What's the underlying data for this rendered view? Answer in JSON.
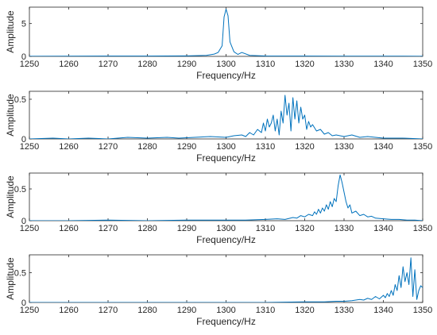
{
  "chart_data": [
    {
      "type": "line",
      "xlabel": "Frequency/Hz",
      "ylabel": "Amplitude",
      "xlim": [
        1250,
        1350
      ],
      "ylim": [
        0,
        7.5
      ],
      "xticks": [
        1250,
        1260,
        1270,
        1280,
        1290,
        1300,
        1310,
        1320,
        1330,
        1340,
        1350
      ],
      "xtick_labels": [
        "1250",
        "1260",
        "1270",
        "1280",
        "1290",
        "1300",
        "1310",
        "1320",
        "1330",
        "1340",
        "1350"
      ],
      "yticks": [
        0,
        5
      ],
      "ytick_labels": [
        "0",
        "5"
      ],
      "grid": false,
      "color": "#0072BD",
      "x": [
        1250,
        1260,
        1280,
        1290,
        1295,
        1297,
        1298,
        1299,
        1299.5,
        1300,
        1300.5,
        1301,
        1302,
        1303,
        1304,
        1306,
        1310,
        1330,
        1350
      ],
      "y": [
        0.02,
        0.03,
        0.05,
        0.08,
        0.15,
        0.35,
        0.6,
        1.6,
        6.0,
        7.2,
        6.2,
        2.2,
        0.7,
        0.3,
        0.6,
        0.15,
        0.06,
        0.03,
        0.02
      ]
    },
    {
      "type": "line",
      "xlabel": "Frequency/Hz",
      "ylabel": "Amplitude",
      "xlim": [
        1250,
        1350
      ],
      "ylim": [
        0,
        0.6
      ],
      "xticks": [
        1250,
        1260,
        1270,
        1280,
        1290,
        1300,
        1310,
        1320,
        1330,
        1340,
        1350
      ],
      "xtick_labels": [
        "1250",
        "1260",
        "1270",
        "1280",
        "1290",
        "1300",
        "1310",
        "1320",
        "1330",
        "1340",
        "1350"
      ],
      "yticks": [
        0,
        0.5
      ],
      "ytick_labels": [
        "0",
        "0.5"
      ],
      "grid": false,
      "color": "#0072BD",
      "x": [
        1250,
        1256,
        1260,
        1265,
        1270,
        1275,
        1280,
        1285,
        1288,
        1292,
        1296,
        1300,
        1302,
        1304,
        1305,
        1306,
        1307,
        1308,
        1309,
        1309.5,
        1310,
        1310.5,
        1311,
        1311.5,
        1312,
        1312.5,
        1313,
        1313.5,
        1314,
        1314.5,
        1315,
        1315.5,
        1316,
        1316.5,
        1317,
        1317.5,
        1318,
        1318.5,
        1319,
        1319.5,
        1320,
        1320.5,
        1321,
        1321.5,
        1322,
        1323,
        1324,
        1325,
        1326,
        1327,
        1328,
        1330,
        1332,
        1334,
        1336,
        1338,
        1340,
        1345,
        1350
      ],
      "y": [
        0.0,
        0.01,
        0.0,
        0.01,
        0.0,
        0.02,
        0.01,
        0.02,
        0.01,
        0.02,
        0.03,
        0.02,
        0.04,
        0.05,
        0.03,
        0.08,
        0.05,
        0.12,
        0.08,
        0.2,
        0.1,
        0.25,
        0.15,
        0.2,
        0.3,
        0.1,
        0.25,
        0.05,
        0.35,
        0.2,
        0.55,
        0.3,
        0.45,
        0.1,
        0.52,
        0.25,
        0.48,
        0.2,
        0.4,
        0.25,
        0.3,
        0.12,
        0.22,
        0.15,
        0.18,
        0.1,
        0.12,
        0.06,
        0.08,
        0.04,
        0.05,
        0.03,
        0.05,
        0.02,
        0.03,
        0.02,
        0.01,
        0.01,
        0.0
      ]
    },
    {
      "type": "line",
      "xlabel": "Frequency/Hz",
      "ylabel": "Amplitude",
      "xlim": [
        1250,
        1350
      ],
      "ylim": [
        0,
        0.75
      ],
      "xticks": [
        1250,
        1260,
        1270,
        1280,
        1290,
        1300,
        1310,
        1320,
        1330,
        1340,
        1350
      ],
      "xtick_labels": [
        "1250",
        "1260",
        "1270",
        "1280",
        "1290",
        "1300",
        "1310",
        "1320",
        "1330",
        "1340",
        "1350"
      ],
      "yticks": [
        0,
        0.5
      ],
      "ytick_labels": [
        "0",
        "0.5"
      ],
      "grid": false,
      "color": "#0072BD",
      "x": [
        1250,
        1260,
        1270,
        1280,
        1290,
        1300,
        1305,
        1310,
        1313,
        1315,
        1317,
        1318,
        1319,
        1320,
        1321,
        1322,
        1322.5,
        1323,
        1323.5,
        1324,
        1324.5,
        1325,
        1325.5,
        1326,
        1326.5,
        1327,
        1327.5,
        1328,
        1328.5,
        1329,
        1329.5,
        1330,
        1330.5,
        1331,
        1331.5,
        1332,
        1333,
        1334,
        1335,
        1336,
        1337,
        1338,
        1340,
        1342,
        1344,
        1346,
        1348,
        1350
      ],
      "y": [
        0.0,
        0.0,
        0.01,
        0.0,
        0.01,
        0.01,
        0.01,
        0.02,
        0.03,
        0.02,
        0.05,
        0.04,
        0.08,
        0.06,
        0.1,
        0.08,
        0.14,
        0.1,
        0.18,
        0.12,
        0.2,
        0.15,
        0.25,
        0.18,
        0.3,
        0.22,
        0.35,
        0.3,
        0.55,
        0.72,
        0.6,
        0.45,
        0.3,
        0.2,
        0.25,
        0.12,
        0.15,
        0.08,
        0.1,
        0.06,
        0.07,
        0.04,
        0.03,
        0.02,
        0.02,
        0.01,
        0.01,
        0.0
      ]
    },
    {
      "type": "line",
      "xlabel": "Frequency/Hz",
      "ylabel": "Amplitude",
      "xlim": [
        1250,
        1350
      ],
      "ylim": [
        0,
        0.8
      ],
      "xticks": [
        1250,
        1260,
        1270,
        1280,
        1290,
        1300,
        1310,
        1320,
        1330,
        1340,
        1350
      ],
      "xtick_labels": [
        "1250",
        "1260",
        "1270",
        "1280",
        "1290",
        "1300",
        "1310",
        "1320",
        "1330",
        "1340",
        "1350"
      ],
      "yticks": [
        0,
        0.5
      ],
      "ytick_labels": [
        "0",
        "0.5"
      ],
      "grid": false,
      "color": "#0072BD",
      "x": [
        1250,
        1270,
        1290,
        1310,
        1320,
        1325,
        1328,
        1330,
        1332,
        1334,
        1335,
        1336,
        1337,
        1338,
        1339,
        1340,
        1340.5,
        1341,
        1341.5,
        1342,
        1342.5,
        1343,
        1343.5,
        1344,
        1344.5,
        1345,
        1345.5,
        1346,
        1346.5,
        1347,
        1347.5,
        1348,
        1348.5,
        1349,
        1349.5,
        1350
      ],
      "y": [
        0.0,
        0.0,
        0.0,
        0.0,
        0.01,
        0.01,
        0.02,
        0.02,
        0.03,
        0.05,
        0.04,
        0.07,
        0.05,
        0.1,
        0.06,
        0.12,
        0.08,
        0.15,
        0.1,
        0.2,
        0.12,
        0.3,
        0.2,
        0.45,
        0.25,
        0.6,
        0.35,
        0.5,
        0.3,
        0.75,
        0.1,
        0.55,
        0.05,
        0.2,
        0.28,
        0.25
      ]
    }
  ]
}
